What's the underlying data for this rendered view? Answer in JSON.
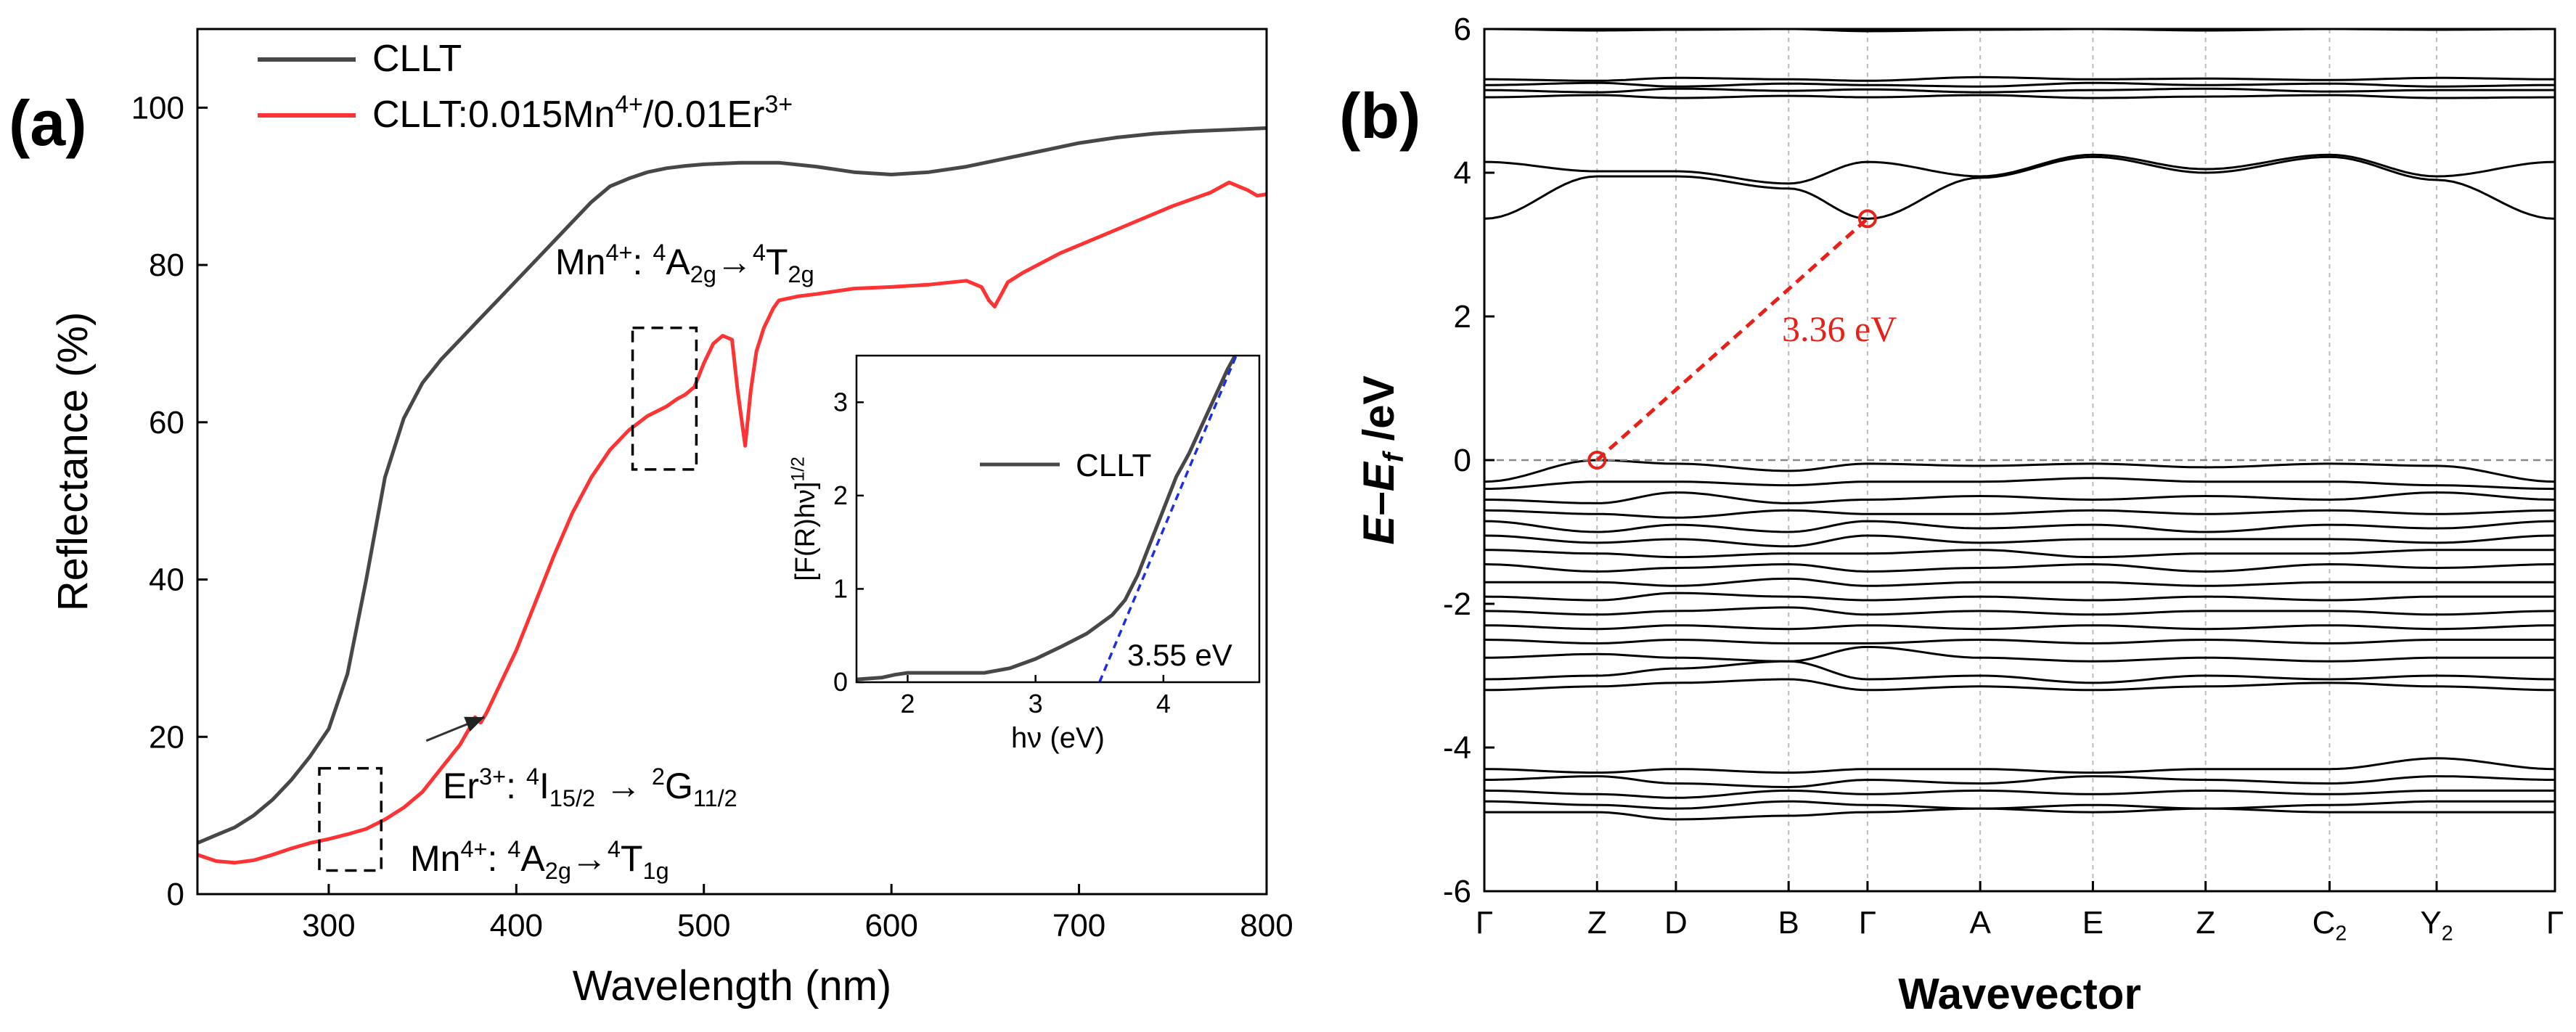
{
  "panel_a_label": "(a)",
  "panel_b_label": "(b)",
  "colors": {
    "clllt": "#474747",
    "doped": "#ff3333",
    "fit": "#1f2ee0",
    "axis": "#000000",
    "highlight": "#e8201a",
    "fermi": "#888888",
    "kpath": "#bbbbbb"
  },
  "chart_data": [
    {
      "id": "reflectance",
      "type": "line",
      "title": "",
      "xlabel": "Wavelength (nm)",
      "ylabel": "Reflectance (%)",
      "xlim": [
        230,
        800
      ],
      "ylim": [
        0,
        110
      ],
      "xticks": [
        300,
        400,
        500,
        600,
        700,
        800
      ],
      "yticks": [
        0,
        20,
        40,
        60,
        80,
        100
      ],
      "legend_position": "top-left",
      "series": [
        {
          "name": "CLLT",
          "color_key": "clllt",
          "x": [
            230,
            240,
            250,
            260,
            270,
            280,
            290,
            300,
            310,
            320,
            330,
            340,
            350,
            360,
            370,
            380,
            390,
            400,
            410,
            420,
            430,
            440,
            450,
            460,
            470,
            480,
            490,
            500,
            520,
            540,
            560,
            580,
            600,
            620,
            640,
            660,
            680,
            700,
            720,
            740,
            760,
            780,
            800
          ],
          "y": [
            6.5,
            7.5,
            8.5,
            10,
            12,
            14.5,
            17.5,
            21,
            28,
            40,
            53,
            60.5,
            65,
            68,
            70.5,
            73,
            75.5,
            78,
            80.5,
            83,
            85.5,
            88,
            90,
            91,
            91.8,
            92.3,
            92.6,
            92.8,
            93,
            93,
            92.5,
            91.8,
            91.5,
            91.8,
            92.5,
            93.5,
            94.5,
            95.5,
            96.2,
            96.7,
            97,
            97.2,
            97.4
          ]
        },
        {
          "name": "CLLT:0.015Mn4+/0.01Er3+",
          "color_key": "doped",
          "x": [
            230,
            240,
            250,
            260,
            270,
            280,
            290,
            300,
            310,
            320,
            330,
            340,
            350,
            360,
            370,
            376,
            378,
            381,
            384,
            390,
            400,
            410,
            420,
            430,
            440,
            450,
            460,
            470,
            480,
            486,
            490,
            495,
            500,
            505,
            510,
            515,
            518,
            522,
            525,
            528,
            532,
            537,
            540,
            550,
            560,
            580,
            600,
            620,
            640,
            648,
            652,
            655,
            658,
            662,
            670,
            690,
            710,
            730,
            750,
            770,
            780,
            790,
            795,
            800
          ],
          "y": [
            5,
            4.2,
            4,
            4.3,
            5,
            5.8,
            6.5,
            7,
            7.6,
            8.3,
            9.5,
            11,
            13,
            16,
            19,
            21.5,
            22.5,
            21.8,
            23,
            26,
            31,
            37,
            43,
            48.5,
            53,
            56.5,
            59,
            60.8,
            62,
            63,
            63.5,
            64.5,
            67.5,
            70,
            71,
            70.5,
            64,
            57,
            64,
            69,
            72,
            74.5,
            75.5,
            76,
            76.3,
            77,
            77.2,
            77.5,
            78,
            77.2,
            75.5,
            74.7,
            76,
            77.8,
            79,
            81.5,
            83.5,
            85.5,
            87.5,
            89.2,
            90.5,
            89.5,
            88.8,
            89
          ]
        }
      ],
      "annotations": [
        {
          "id": "mn_t2g",
          "parts": [
            [
              "Mn",
              "n"
            ],
            [
              "4+",
              "sup"
            ],
            [
              ": ",
              "n"
            ],
            [
              "4",
              "sup"
            ],
            [
              "A",
              "n"
            ],
            [
              "2g",
              "sub"
            ],
            [
              "→",
              "n"
            ],
            [
              "4",
              "sup"
            ],
            [
              "T",
              "n"
            ],
            [
              "2g",
              "sub"
            ]
          ]
        },
        {
          "id": "er_transition",
          "parts": [
            [
              "Er",
              "n"
            ],
            [
              "3+",
              "sup"
            ],
            [
              ": ",
              "n"
            ],
            [
              "4",
              "sup"
            ],
            [
              "I",
              "n"
            ],
            [
              "15/2",
              "sub"
            ],
            [
              " → ",
              "n"
            ],
            [
              "2",
              "sup"
            ],
            [
              "G",
              "n"
            ],
            [
              "11/2",
              "sub"
            ]
          ]
        },
        {
          "id": "mn_t1g",
          "parts": [
            [
              "Mn",
              "n"
            ],
            [
              "4+",
              "sup"
            ],
            [
              ": ",
              "n"
            ],
            [
              "4",
              "sup"
            ],
            [
              "A",
              "n"
            ],
            [
              "2g",
              "sub"
            ],
            [
              "→",
              "n"
            ],
            [
              "4",
              "sup"
            ],
            [
              "T",
              "n"
            ],
            [
              "1g",
              "sub"
            ]
          ]
        }
      ],
      "legend_entries": [
        {
          "parts": [
            [
              "CLLT",
              "n"
            ]
          ]
        },
        {
          "parts": [
            [
              "CLLT:0.015Mn",
              "n"
            ],
            [
              "4+",
              "sup"
            ],
            [
              "/0.01Er",
              "n"
            ],
            [
              "3+",
              "sup"
            ]
          ]
        }
      ],
      "highlight_boxes": [
        {
          "x_range": [
            295,
            328
          ],
          "y_range": [
            3,
            16
          ]
        },
        {
          "x_range": [
            462,
            496
          ],
          "y_range": [
            54,
            72
          ]
        }
      ],
      "arrow": {
        "from": [
          352,
          19.5
        ],
        "to": [
          383,
          22.5
        ]
      }
    },
    {
      "id": "tauc_inset",
      "type": "line",
      "xlabel": "hν (eV)",
      "ylabel_parts": [
        [
          "[F(R)hν]",
          "n"
        ],
        [
          "1/2",
          "sup"
        ]
      ],
      "xlim": [
        1.6,
        4.75
      ],
      "ylim": [
        0,
        3.5
      ],
      "xticks": [
        2,
        3,
        4
      ],
      "yticks": [
        0,
        1,
        2,
        3
      ],
      "legend_position": "center-right",
      "series": [
        {
          "name": "CLLT",
          "color_key": "clllt",
          "x": [
            1.6,
            1.8,
            1.9,
            2.0,
            2.2,
            2.4,
            2.6,
            2.8,
            3.0,
            3.2,
            3.4,
            3.6,
            3.7,
            3.8,
            3.9,
            4.0,
            4.1,
            4.2,
            4.3,
            4.4,
            4.5,
            4.6
          ],
          "y": [
            0.03,
            0.05,
            0.08,
            0.1,
            0.1,
            0.1,
            0.1,
            0.15,
            0.25,
            0.38,
            0.52,
            0.72,
            0.88,
            1.15,
            1.5,
            1.85,
            2.2,
            2.45,
            2.75,
            3.05,
            3.35,
            3.6
          ]
        }
      ],
      "fit_line": {
        "x": [
          3.5,
          4.6
        ],
        "y": [
          0.0,
          3.6
        ]
      },
      "annotation": "3.55 eV"
    },
    {
      "id": "band_structure",
      "type": "line",
      "xlabel": "Wavevector",
      "ylabel_parts": [
        [
          "E",
          "i"
        ],
        [
          "–",
          "n"
        ],
        [
          "E",
          "i"
        ],
        [
          "f",
          "isub"
        ],
        [
          " /eV",
          "n"
        ]
      ],
      "ylim": [
        -6,
        6
      ],
      "yticks": [
        -6,
        -4,
        -2,
        0,
        2,
        4,
        6
      ],
      "kpoints": [
        {
          "parts": [
            [
              "Γ",
              "n"
            ]
          ]
        },
        {
          "parts": [
            [
              "Z",
              "n"
            ]
          ]
        },
        {
          "parts": [
            [
              "D",
              "n"
            ]
          ]
        },
        {
          "parts": [
            [
              "B",
              "n"
            ]
          ]
        },
        {
          "parts": [
            [
              "Γ",
              "n"
            ]
          ]
        },
        {
          "parts": [
            [
              "A",
              "n"
            ]
          ]
        },
        {
          "parts": [
            [
              "E",
              "n"
            ]
          ]
        },
        {
          "parts": [
            [
              "Z",
              "n"
            ]
          ]
        },
        {
          "parts": [
            [
              "C",
              "n"
            ],
            [
              "2",
              "sub"
            ]
          ]
        },
        {
          "parts": [
            [
              "Y",
              "n"
            ],
            [
              "2",
              "sub"
            ]
          ]
        },
        {
          "parts": [
            [
              "Γ",
              "n"
            ]
          ]
        }
      ],
      "kpoint_positions": [
        0,
        1,
        1.7,
        2.7,
        3.4,
        4.4,
        5.4,
        6.4,
        7.5,
        8.45,
        9.5
      ],
      "fermi_level": 0,
      "vbm": {
        "k": 1,
        "energy": 0
      },
      "cbm": {
        "k": 3.4,
        "energy": 3.36
      },
      "gap_label": "3.36 eV",
      "conduction_bands": [
        [
          6.0,
          5.98,
          5.99,
          6.0,
          5.97,
          5.99,
          6.0,
          5.98,
          6.0,
          5.99,
          6.0
        ],
        [
          5.3,
          5.28,
          5.32,
          5.3,
          5.28,
          5.33,
          5.3,
          5.31,
          5.29,
          5.32,
          5.3
        ],
        [
          5.22,
          5.25,
          5.2,
          5.24,
          5.22,
          5.2,
          5.25,
          5.22,
          5.24,
          5.2,
          5.22
        ],
        [
          5.15,
          5.12,
          5.17,
          5.14,
          5.16,
          5.12,
          5.15,
          5.17,
          5.13,
          5.15,
          5.15
        ],
        [
          5.05,
          5.08,
          5.04,
          5.07,
          5.05,
          5.08,
          5.04,
          5.06,
          5.08,
          5.04,
          5.05
        ],
        [
          4.15,
          4.02,
          4.02,
          3.85,
          4.15,
          3.95,
          4.25,
          4.05,
          4.25,
          3.95,
          4.15
        ],
        [
          3.36,
          3.95,
          3.95,
          3.78,
          3.36,
          3.93,
          4.22,
          4.0,
          4.22,
          3.9,
          3.36
        ]
      ],
      "valence_bands": [
        [
          -0.3,
          0.0,
          -0.05,
          -0.15,
          -0.05,
          -0.08,
          -0.05,
          -0.1,
          -0.05,
          -0.08,
          -0.3
        ],
        [
          -0.4,
          -0.3,
          -0.3,
          -0.35,
          -0.3,
          -0.3,
          -0.25,
          -0.3,
          -0.3,
          -0.35,
          -0.4
        ],
        [
          -0.55,
          -0.6,
          -0.45,
          -0.6,
          -0.55,
          -0.5,
          -0.55,
          -0.5,
          -0.55,
          -0.45,
          -0.55
        ],
        [
          -0.7,
          -0.75,
          -0.8,
          -0.7,
          -0.75,
          -0.75,
          -0.7,
          -0.75,
          -0.7,
          -0.75,
          -0.7
        ],
        [
          -0.85,
          -1.0,
          -0.9,
          -1.0,
          -0.85,
          -0.95,
          -0.9,
          -1.0,
          -0.9,
          -0.95,
          -0.85
        ],
        [
          -1.05,
          -1.15,
          -1.1,
          -1.2,
          -1.05,
          -1.15,
          -1.1,
          -1.1,
          -1.1,
          -1.15,
          -1.05
        ],
        [
          -1.25,
          -1.3,
          -1.35,
          -1.3,
          -1.3,
          -1.25,
          -1.35,
          -1.3,
          -1.3,
          -1.25,
          -1.25
        ],
        [
          -1.45,
          -1.55,
          -1.5,
          -1.45,
          -1.55,
          -1.5,
          -1.45,
          -1.55,
          -1.45,
          -1.5,
          -1.45
        ],
        [
          -1.7,
          -1.7,
          -1.75,
          -1.65,
          -1.75,
          -1.7,
          -1.7,
          -1.75,
          -1.7,
          -1.7,
          -1.7
        ],
        [
          -1.9,
          -1.95,
          -1.85,
          -1.9,
          -1.95,
          -1.9,
          -1.95,
          -1.9,
          -1.95,
          -1.9,
          -1.9
        ],
        [
          -2.1,
          -2.15,
          -2.1,
          -2.05,
          -2.15,
          -2.1,
          -2.15,
          -2.1,
          -2.1,
          -2.15,
          -2.1
        ],
        [
          -2.3,
          -2.35,
          -2.3,
          -2.35,
          -2.3,
          -2.35,
          -2.3,
          -2.35,
          -2.3,
          -2.35,
          -2.3
        ],
        [
          -2.5,
          -2.55,
          -2.5,
          -2.55,
          -2.55,
          -2.5,
          -2.55,
          -2.5,
          -2.55,
          -2.5,
          -2.5
        ],
        [
          -2.75,
          -2.7,
          -2.75,
          -2.8,
          -2.6,
          -2.75,
          -2.8,
          -2.75,
          -2.8,
          -2.75,
          -2.75
        ],
        [
          -3.05,
          -3.0,
          -2.9,
          -2.8,
          -3.05,
          -3.0,
          -3.1,
          -3.0,
          -3.05,
          -3.0,
          -3.05
        ],
        [
          -3.2,
          -3.15,
          -3.1,
          -3.05,
          -3.2,
          -3.15,
          -3.2,
          -3.15,
          -3.1,
          -3.15,
          -3.2
        ],
        [
          -4.3,
          -4.35,
          -4.3,
          -4.35,
          -4.3,
          -4.3,
          -4.35,
          -4.3,
          -4.3,
          -4.15,
          -4.3
        ],
        [
          -4.45,
          -4.4,
          -4.5,
          -4.55,
          -4.45,
          -4.5,
          -4.4,
          -4.45,
          -4.5,
          -4.4,
          -4.45
        ],
        [
          -4.6,
          -4.65,
          -4.7,
          -4.6,
          -4.65,
          -4.6,
          -4.65,
          -4.6,
          -4.65,
          -4.6,
          -4.6
        ],
        [
          -4.75,
          -4.8,
          -4.85,
          -4.75,
          -4.8,
          -4.85,
          -4.8,
          -4.85,
          -4.8,
          -4.75,
          -4.75
        ],
        [
          -4.9,
          -4.9,
          -5.0,
          -4.95,
          -4.9,
          -4.85,
          -4.9,
          -4.85,
          -4.9,
          -4.9,
          -4.9
        ]
      ]
    }
  ]
}
